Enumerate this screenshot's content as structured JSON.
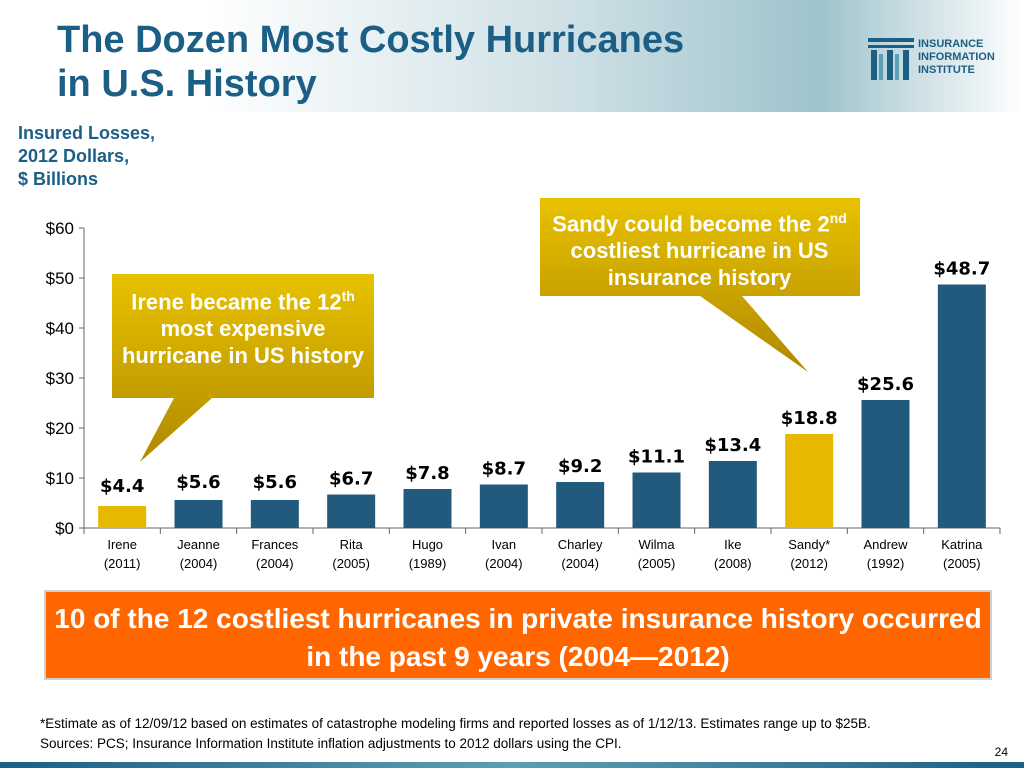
{
  "title_line1": "The Dozen Most Costly Hurricanes",
  "title_line2": "in U.S. History",
  "logo": {
    "line1": "INSURANCE",
    "line2": "INFORMATION",
    "line3": "INSTITUTE"
  },
  "subtitle_line1": "Insured Losses,",
  "subtitle_line2": "2012 Dollars,",
  "subtitle_line3": "$ Billions",
  "callout_irene": {
    "before": "Irene became the 12",
    "sup": "th",
    "after": " most expensive hurricane in US history"
  },
  "callout_sandy": {
    "before": "Sandy could become the 2",
    "sup": "nd",
    "after": " costliest hurricane in US insurance history"
  },
  "banner": "10 of the 12 costliest hurricanes in private insurance history occurred in the past 9 years (2004—2012)",
  "footnote_line1": "*Estimate as of 12/09/12 based on estimates of catastrophe modeling firms and reported losses as of 1/12/13. Estimates range up to $25B.",
  "footnote_line2": "Sources: PCS; Insurance Information Institute inflation adjustments to 2012 dollars using the CPI.",
  "page_number": "24",
  "colors": {
    "bar": "#215a7c",
    "highlight": "#e6b800",
    "title": "#1b5e86",
    "banner": "#ff6600",
    "callout": "#d4a800"
  },
  "chart_data": {
    "type": "bar",
    "categories": [
      "Irene",
      "Jeanne",
      "Frances",
      "Rita",
      "Hugo",
      "Ivan",
      "Charley",
      "Wilma",
      "Ike",
      "Sandy*",
      "Andrew",
      "Katrina"
    ],
    "years": [
      "(2011)",
      "(2004)",
      "(2004)",
      "(2005)",
      "(1989)",
      "(2004)",
      "(2004)",
      "(2005)",
      "(2008)",
      "(2012)",
      "(1992)",
      "(2005)"
    ],
    "values": [
      4.4,
      5.6,
      5.6,
      6.7,
      7.8,
      8.7,
      9.2,
      11.1,
      13.4,
      18.8,
      25.6,
      48.7
    ],
    "labels": [
      "$4.4",
      "$5.6",
      "$5.6",
      "$6.7",
      "$7.8",
      "$8.7",
      "$9.2",
      "$11.1",
      "$13.4",
      "$18.8",
      "$25.6",
      "$48.7"
    ],
    "highlighted": [
      "Irene",
      "Sandy*"
    ],
    "ylim": [
      0,
      60
    ],
    "yticks": [
      "$0",
      "$10",
      "$20",
      "$30",
      "$40",
      "$50",
      "$60"
    ],
    "grid": false
  }
}
